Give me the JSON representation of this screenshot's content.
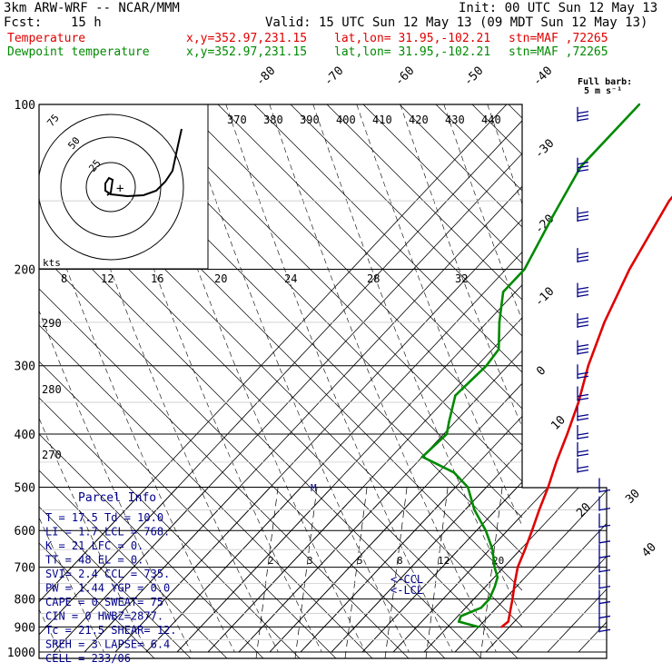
{
  "header": {
    "model": "3km ARW-WRF -- NCAR/MMM",
    "init": "Init: 00 UTC Sun 12 May 13",
    "fcst_label": "Fcst:",
    "fcst_value": "15 h",
    "valid": "Valid: 15 UTC Sun 12 May 13 (09 MDT Sun 12 May 13)",
    "temp_label": "Temperature",
    "dew_label": "Dewpoint temperature",
    "xy": "x,y=352.97,231.15",
    "latlon": "lat,lon= 31.95,-102.21",
    "stn": "stn=MAF ,72265"
  },
  "barb_legend": {
    "line1": "Full barb:",
    "line2": "5 m s⁻¹"
  },
  "hodograph": {
    "ring_labels": [
      "75",
      "50",
      "25"
    ],
    "plus": "+",
    "kts": "kts"
  },
  "parcel": {
    "title": "Parcel Info",
    "rows": [
      "T  =   17.5 Td = 10.0",
      "LI =    1.7 LCL = 768.",
      "K  =     21 LFC =   0.",
      "TT =     48 EL  =   0.",
      "SVI=    2.4 CCL = 735.",
      "PW =   1.44 YGP = 0.0",
      "CAPE =    0 SWEAT= 75",
      "CIN  =    0 HWBZ=2877.",
      "Tc =   21.5 SHEAR= 12.",
      "SREH =    3 LAPSE= 6.4",
      "CELL = 233/06"
    ]
  },
  "markers": {
    "ccl": "<-CCL",
    "lcl": "<-LCL",
    "m": "M"
  },
  "colors": {
    "temperature": "#e00000",
    "dewpoint": "#008a00",
    "parcel_text": "#00008b",
    "wind": "#00008b",
    "frame": "#000000"
  },
  "chart_data": {
    "type": "line",
    "chart": "skew-T log-p sounding",
    "ylabel": "",
    "pressure_levels": [
      100,
      200,
      300,
      400,
      500,
      600,
      700,
      800,
      900,
      1000
    ],
    "isotherm_labels": [
      "-80",
      "-70",
      "-60",
      "-50",
      "-40",
      "-30",
      "-20",
      "-10",
      "0",
      "10",
      "20",
      "30",
      "40"
    ],
    "isotherm_values": [
      -80,
      -70,
      -60,
      -50,
      -40,
      -30,
      -20,
      -10,
      0,
      10,
      20,
      30,
      40
    ],
    "theta_e_labels": [
      "370",
      "380",
      "390",
      "400",
      "410",
      "420",
      "430",
      "440"
    ],
    "hodo_speed_labels": [
      "8",
      "12",
      "16",
      "20",
      "24",
      "28",
      "32"
    ],
    "theta_labels": [
      "290",
      "280",
      "270"
    ],
    "theta_values": [
      290,
      280,
      270
    ],
    "mixing_ratio_labels": [
      "2",
      "3",
      "5",
      "8",
      "12",
      "20"
    ],
    "mixing_ratio_values": [
      2,
      3,
      5,
      8,
      12,
      20
    ],
    "series": [
      {
        "name": "Temperature",
        "points": [
          [
            100,
            -61
          ],
          [
            150,
            -58
          ],
          [
            200,
            -50
          ],
          [
            250,
            -42
          ],
          [
            300,
            -34
          ],
          [
            350,
            -26
          ],
          [
            400,
            -20
          ],
          [
            450,
            -15
          ],
          [
            500,
            -10
          ],
          [
            550,
            -6
          ],
          [
            600,
            -2
          ],
          [
            650,
            1.5
          ],
          [
            700,
            4.5
          ],
          [
            750,
            8.5
          ],
          [
            800,
            12.5
          ],
          [
            850,
            16
          ],
          [
            880,
            18
          ],
          [
            900,
            17.5
          ]
        ]
      },
      {
        "name": "Dewpoint temperature",
        "points": [
          [
            100,
            -97
          ],
          [
            130,
            -97
          ],
          [
            160,
            -91
          ],
          [
            200,
            -84
          ],
          [
            220,
            -84
          ],
          [
            250,
            -76
          ],
          [
            280,
            -68
          ],
          [
            300,
            -67
          ],
          [
            340,
            -68
          ],
          [
            380,
            -62
          ],
          [
            400,
            -59
          ],
          [
            440,
            -60
          ],
          [
            470,
            -45
          ],
          [
            500,
            -36
          ],
          [
            550,
            -27
          ],
          [
            600,
            -17
          ],
          [
            650,
            -9
          ],
          [
            700,
            -3
          ],
          [
            730,
            1
          ],
          [
            760,
            3
          ],
          [
            800,
            5
          ],
          [
            830,
            5
          ],
          [
            860,
            1
          ],
          [
            880,
            2
          ],
          [
            900,
            10
          ]
        ]
      }
    ],
    "wind": [
      {
        "p": 105,
        "speed_ms": 16
      },
      {
        "p": 130,
        "speed_ms": 17
      },
      {
        "p": 160,
        "speed_ms": 17
      },
      {
        "p": 190,
        "speed_ms": 16
      },
      {
        "p": 220,
        "speed_ms": 15
      },
      {
        "p": 250,
        "speed_ms": 14
      },
      {
        "p": 280,
        "speed_ms": 13
      },
      {
        "p": 310,
        "speed_ms": 12
      },
      {
        "p": 340,
        "speed_ms": 12
      },
      {
        "p": 370,
        "speed_ms": 11
      },
      {
        "p": 400,
        "speed_ms": 10
      },
      {
        "p": 430,
        "speed_ms": 9
      },
      {
        "p": 460,
        "speed_ms": 8
      },
      {
        "p": 500,
        "speed_ms": 7
      },
      {
        "p": 540,
        "speed_ms": 6
      },
      {
        "p": 580,
        "speed_ms": 6
      },
      {
        "p": 620,
        "speed_ms": 5
      },
      {
        "p": 660,
        "speed_ms": 4
      },
      {
        "p": 700,
        "speed_ms": 4
      },
      {
        "p": 750,
        "speed_ms": 3
      },
      {
        "p": 800,
        "speed_ms": 3
      },
      {
        "p": 850,
        "speed_ms": 2
      },
      {
        "p": 900,
        "speed_ms": 2
      }
    ]
  }
}
